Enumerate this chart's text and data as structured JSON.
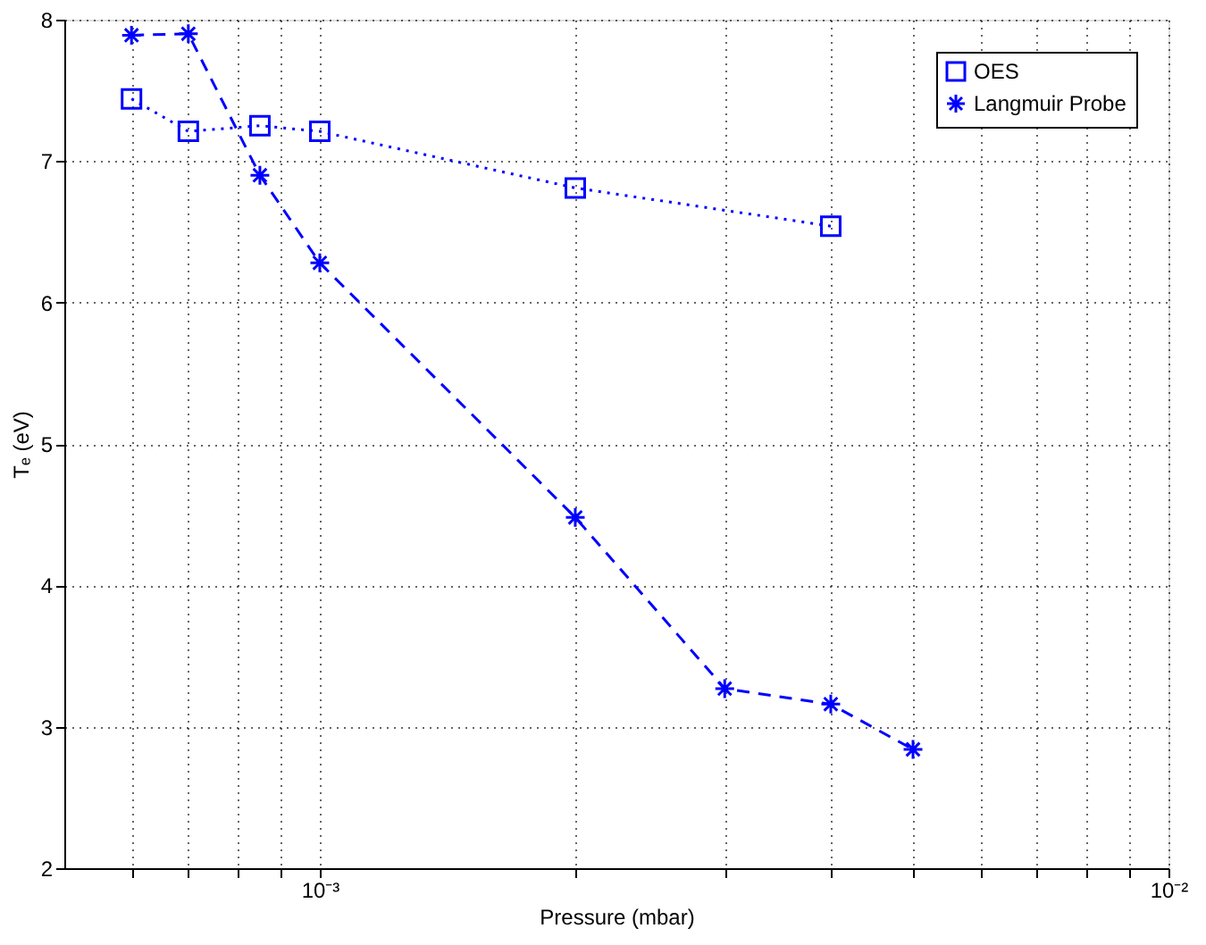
{
  "chart_data": {
    "type": "line",
    "xlabel": "Pressure (mbar)",
    "ylabel": "Tₑ (eV)",
    "log": "x",
    "grid": true,
    "legend": "top right",
    "xlim": [
      0.0005,
      0.01
    ],
    "ylim": [
      2,
      8
    ],
    "xticks": [
      {
        "value": 0.0006,
        "label": null
      },
      {
        "value": 0.0007,
        "label": null
      },
      {
        "value": 0.0008,
        "label": null
      },
      {
        "value": 0.0009,
        "label": null
      },
      {
        "value": 0.001,
        "label": "10⁻³"
      },
      {
        "value": 0.002,
        "label": null
      },
      {
        "value": 0.003,
        "label": null
      },
      {
        "value": 0.004,
        "label": null
      },
      {
        "value": 0.005,
        "label": null
      },
      {
        "value": 0.006,
        "label": null
      },
      {
        "value": 0.007,
        "label": null
      },
      {
        "value": 0.008,
        "label": null
      },
      {
        "value": 0.009,
        "label": null
      },
      {
        "value": 0.01,
        "label": "10⁻²"
      }
    ],
    "yticks": [
      2,
      3,
      4,
      5,
      6,
      7,
      8
    ],
    "series": [
      {
        "name": "OES",
        "color": "#0000ff",
        "marker": "square",
        "line_style": "dotted",
        "x": [
          0.0006,
          0.0007,
          0.00085,
          0.001,
          0.002,
          0.004
        ],
        "values": [
          7.44,
          7.21,
          7.25,
          7.21,
          6.81,
          6.54
        ]
      },
      {
        "name": "Langmuir Probe",
        "color": "#0000ff",
        "marker": "cross",
        "line_style": "dashed",
        "x": [
          0.0006,
          0.0007,
          0.00085,
          0.001,
          0.002,
          0.003,
          0.004,
          0.005
        ],
        "values": [
          7.89,
          7.9,
          6.9,
          6.28,
          4.48,
          3.27,
          3.16,
          2.84
        ]
      }
    ]
  }
}
